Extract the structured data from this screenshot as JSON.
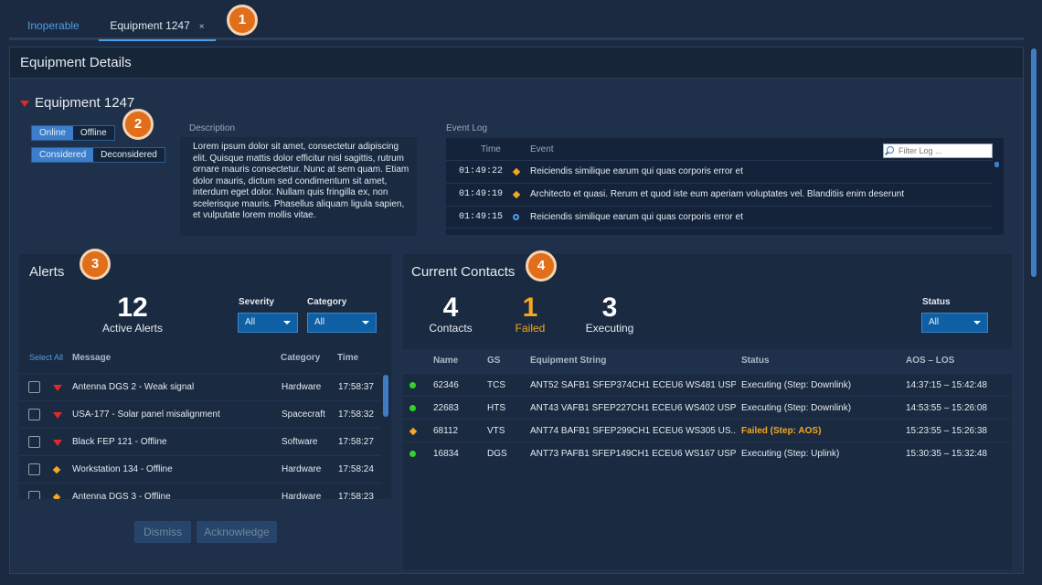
{
  "tabs": {
    "inoperable": "Inoperable",
    "equipment": "Equipment 1247",
    "close": "×"
  },
  "markers": [
    "1",
    "2",
    "3",
    "4"
  ],
  "panel": {
    "title": "Equipment Details"
  },
  "equipment": {
    "name": "Equipment 1247",
    "online_label": "Online",
    "offline_label": "Offline",
    "considered_label": "Considered",
    "deconsidered_label": "Deconsidered",
    "description_label": "Description",
    "description": "Lorem ipsum dolor sit amet, consectetur adipiscing elit. Quisque mattis dolor efficitur nisl sagittis, rutrum ornare mauris consectetur. Nunc at sem quam. Etiam dolor mauris, dictum sed condimentum sit amet, interdum eget dolor. Nullam quis fringilla ex, non scelerisque mauris. Phasellus aliquam ligula sapien, et vulputate lorem mollis vitae."
  },
  "event_log": {
    "label": "Event Log",
    "col_time": "Time",
    "col_event": "Event",
    "filter_placeholder": "Filter Log ...",
    "rows": [
      {
        "time": "01:49:22",
        "icon": "diamond-icon",
        "event": "Reiciendis similique earum qui quas corporis error et"
      },
      {
        "time": "01:49:19",
        "icon": "diamond-icon",
        "event": "Architecto et quasi. Rerum et quod iste eum aperiam voluptates vel. Blanditiis enim deserunt"
      },
      {
        "time": "01:49:15",
        "icon": "ring-icon",
        "event": "Reiciendis similique earum qui quas corporis error et"
      }
    ]
  },
  "alerts": {
    "title": "Alerts",
    "count": "12",
    "count_label": "Active Alerts",
    "severity_label": "Severity",
    "severity_value": "All",
    "category_label": "Category",
    "category_value": "All",
    "col_select_all": "Select All",
    "col_message": "Message",
    "col_category": "Category",
    "col_time": "Time",
    "rows": [
      {
        "icon": "triangle-icon",
        "message": "Antenna DGS 2 - Weak signal",
        "category": "Hardware",
        "time": "17:58:37"
      },
      {
        "icon": "triangle-icon",
        "message": "USA-177 - Solar panel misalignment",
        "category": "Spacecraft",
        "time": "17:58:32"
      },
      {
        "icon": "triangle-icon",
        "message": "Black FEP 121 - Offline",
        "category": "Software",
        "time": "17:58:27"
      },
      {
        "icon": "diamond-icon",
        "message": "Workstation 134 - Offline",
        "category": "Hardware",
        "time": "17:58:24"
      },
      {
        "icon": "diamond-icon",
        "message": "Antenna DGS 3 - Offline",
        "category": "Hardware",
        "time": "17:58:23"
      }
    ],
    "dismiss_label": "Dismiss",
    "acknowledge_label": "Acknowledge"
  },
  "contacts": {
    "title": "Current Contacts",
    "contacts_count": "4",
    "contacts_label": "Contacts",
    "failed_count": "1",
    "failed_label": "Failed",
    "executing_count": "3",
    "executing_label": "Executing",
    "status_label": "Status",
    "status_value": "All",
    "col_name": "Name",
    "col_gs": "GS",
    "col_equipment": "Equipment String",
    "col_status": "Status",
    "col_aos": "AOS – LOS",
    "rows": [
      {
        "icon": "green-dot-icon",
        "name": "62346",
        "gs": "TCS",
        "equipment": "ANT52 SAFB1 SFEP374CH1 ECEU6 WS481 USP...",
        "status": "Executing (Step: Downlink)",
        "aos": "14:37:15 – 15:42:48",
        "failed": false
      },
      {
        "icon": "green-dot-icon",
        "name": "22683",
        "gs": "HTS",
        "equipment": "ANT43 VAFB1 SFEP227CH1 ECEU6 WS402 USP...",
        "status": "Executing (Step: Downlink)",
        "aos": "14:53:55 – 15:26:08",
        "failed": false
      },
      {
        "icon": "diamond-icon",
        "name": "68112",
        "gs": "VTS",
        "equipment": "ANT74 BAFB1 SFEP299CH1 ECEU6 WS305 US...",
        "status": "Failed (Step: AOS)",
        "aos": "15:23:55 – 15:26:38",
        "failed": true
      },
      {
        "icon": "green-dot-icon",
        "name": "16834",
        "gs": "DGS",
        "equipment": "ANT73 PAFB1 SFEP149CH1 ECEU6 WS167 USP...",
        "status": "Executing (Step: Uplink)",
        "aos": "15:30:35 – 15:32:48",
        "failed": false
      }
    ]
  },
  "colors": {
    "accent": "#4e9ee6",
    "critical": "#e3272b",
    "caution": "#f5a623",
    "normal": "#32d130",
    "marker": "#e06e1a"
  }
}
